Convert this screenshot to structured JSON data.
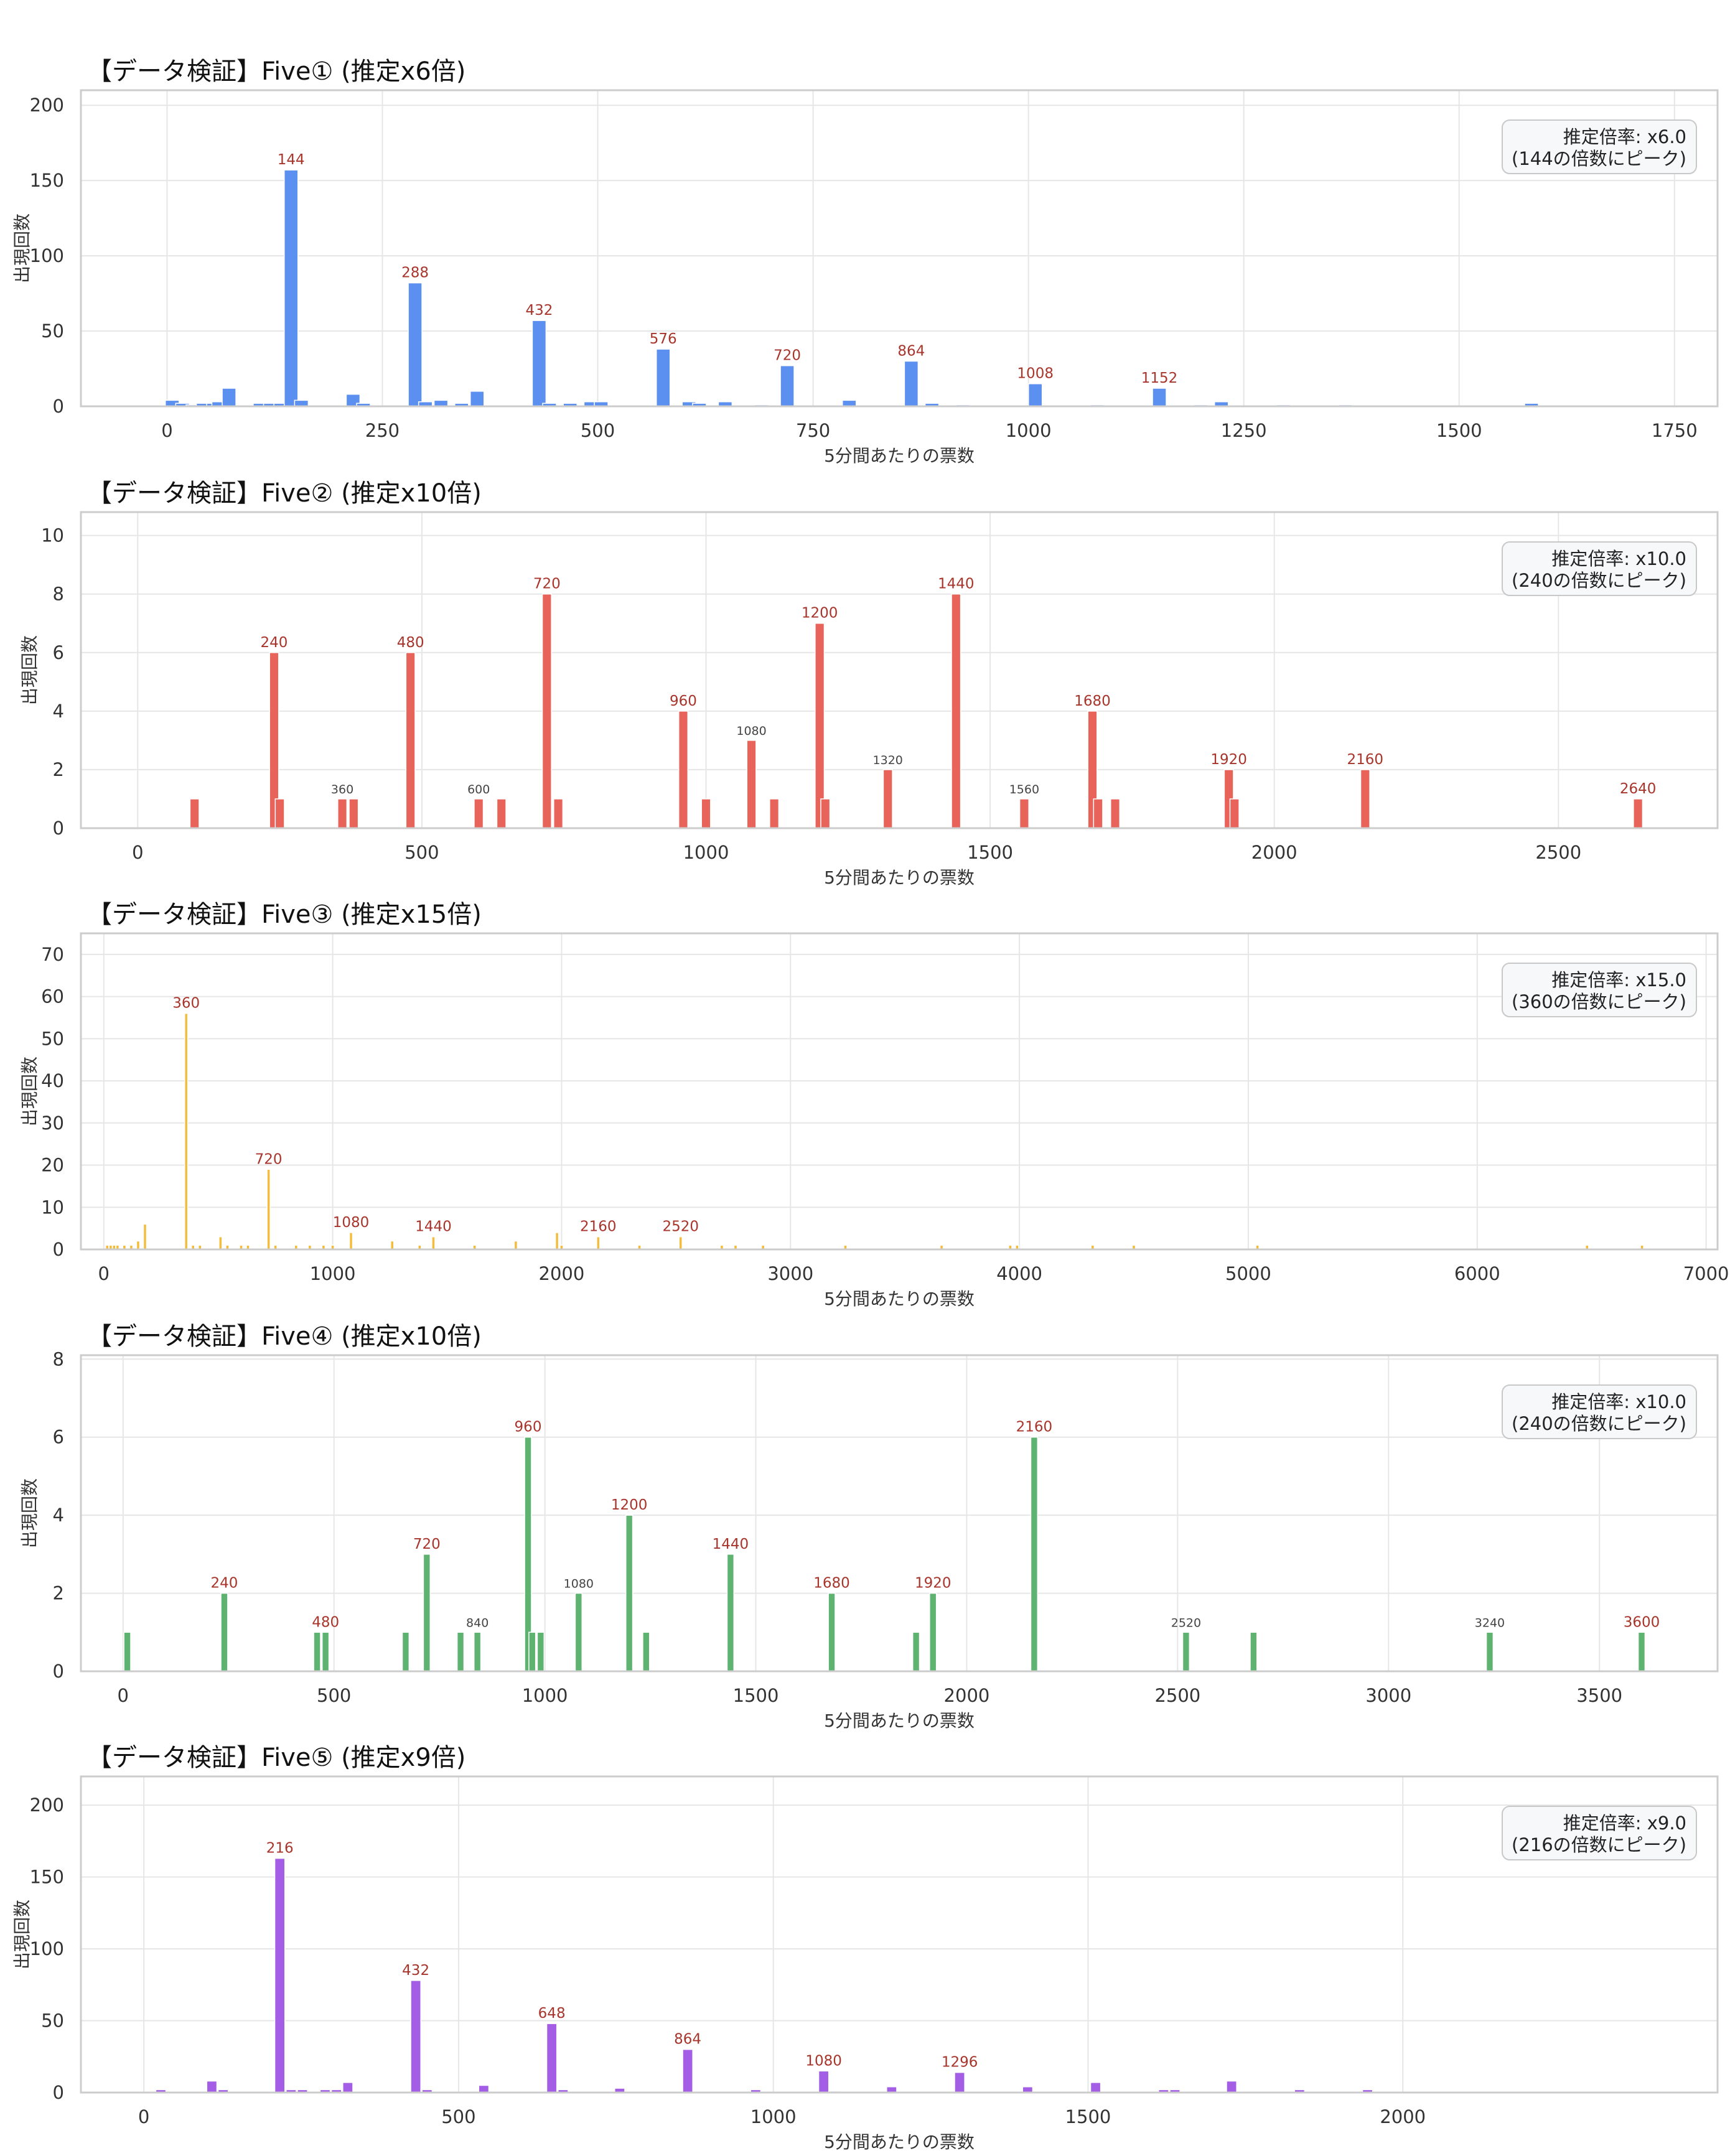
{
  "x_axis_label": "5分間あたりの票数",
  "y_axis_label": "出現回数",
  "chart_data": [
    {
      "type": "bar",
      "title": "【データ検証】Five① (推定x6倍)",
      "xlabel": "5分間あたりの票数",
      "ylabel": "出現回数",
      "color": "#5b8ff0",
      "xlim": [
        -100,
        1800
      ],
      "ylim": [
        0,
        210
      ],
      "xticks": [
        0,
        250,
        500,
        750,
        1000,
        1250,
        1500,
        1750
      ],
      "yticks": [
        0,
        50,
        100,
        150,
        200
      ],
      "grid": true,
      "legend_placement": "top-right",
      "annotation": [
        "推定倍率: x6.0",
        "(144の倍数にピーク)"
      ],
      "bars": [
        {
          "x": 6,
          "y": 4
        },
        {
          "x": 18,
          "y": 2
        },
        {
          "x": 30,
          "y": 1
        },
        {
          "x": 42,
          "y": 2
        },
        {
          "x": 54,
          "y": 2
        },
        {
          "x": 60,
          "y": 3
        },
        {
          "x": 72,
          "y": 12
        },
        {
          "x": 108,
          "y": 2
        },
        {
          "x": 120,
          "y": 2
        },
        {
          "x": 132,
          "y": 2
        },
        {
          "x": 144,
          "y": 157
        },
        {
          "x": 156,
          "y": 4
        },
        {
          "x": 216,
          "y": 8
        },
        {
          "x": 228,
          "y": 2
        },
        {
          "x": 288,
          "y": 82
        },
        {
          "x": 300,
          "y": 3
        },
        {
          "x": 318,
          "y": 4
        },
        {
          "x": 342,
          "y": 2
        },
        {
          "x": 360,
          "y": 10
        },
        {
          "x": 432,
          "y": 57
        },
        {
          "x": 444,
          "y": 2
        },
        {
          "x": 468,
          "y": 2
        },
        {
          "x": 492,
          "y": 3
        },
        {
          "x": 504,
          "y": 3
        },
        {
          "x": 576,
          "y": 38
        },
        {
          "x": 606,
          "y": 3
        },
        {
          "x": 618,
          "y": 2
        },
        {
          "x": 648,
          "y": 3
        },
        {
          "x": 690,
          "y": 1
        },
        {
          "x": 720,
          "y": 27
        },
        {
          "x": 792,
          "y": 4
        },
        {
          "x": 864,
          "y": 30
        },
        {
          "x": 888,
          "y": 2
        },
        {
          "x": 924,
          "y": 1
        },
        {
          "x": 1008,
          "y": 15
        },
        {
          "x": 1080,
          "y": 1
        },
        {
          "x": 1152,
          "y": 12
        },
        {
          "x": 1200,
          "y": 1
        },
        {
          "x": 1224,
          "y": 3
        },
        {
          "x": 1296,
          "y": 1
        },
        {
          "x": 1368,
          "y": 1
        },
        {
          "x": 1584,
          "y": 2
        }
      ],
      "bar_labels": [
        {
          "x": 144,
          "y": 157,
          "text": "144",
          "highlight": true
        },
        {
          "x": 288,
          "y": 82,
          "text": "288",
          "highlight": true
        },
        {
          "x": 432,
          "y": 57,
          "text": "432",
          "highlight": true
        },
        {
          "x": 576,
          "y": 38,
          "text": "576",
          "highlight": true
        },
        {
          "x": 720,
          "y": 27,
          "text": "720",
          "highlight": true
        },
        {
          "x": 864,
          "y": 30,
          "text": "864",
          "highlight": true
        },
        {
          "x": 1008,
          "y": 15,
          "text": "1008",
          "highlight": true
        },
        {
          "x": 1152,
          "y": 12,
          "text": "1152",
          "highlight": true
        }
      ]
    },
    {
      "type": "bar",
      "title": "【データ検証】Five② (推定x10倍)",
      "xlabel": "5分間あたりの票数",
      "ylabel": "出現回数",
      "color": "#e8635a",
      "xlim": [
        -100,
        2780
      ],
      "ylim": [
        0,
        10.8
      ],
      "xticks": [
        0,
        500,
        1000,
        1500,
        2000,
        2500
      ],
      "yticks": [
        0,
        2,
        4,
        6,
        8,
        10
      ],
      "grid": true,
      "legend_placement": "top-right",
      "annotation": [
        "推定倍率: x10.0",
        "(240の倍数にピーク)"
      ],
      "bars": [
        {
          "x": 100,
          "y": 1
        },
        {
          "x": 240,
          "y": 6
        },
        {
          "x": 250,
          "y": 1
        },
        {
          "x": 360,
          "y": 1
        },
        {
          "x": 380,
          "y": 1
        },
        {
          "x": 480,
          "y": 6
        },
        {
          "x": 600,
          "y": 1
        },
        {
          "x": 640,
          "y": 1
        },
        {
          "x": 720,
          "y": 8
        },
        {
          "x": 740,
          "y": 1
        },
        {
          "x": 960,
          "y": 4
        },
        {
          "x": 1000,
          "y": 1
        },
        {
          "x": 1080,
          "y": 3
        },
        {
          "x": 1120,
          "y": 1
        },
        {
          "x": 1200,
          "y": 7
        },
        {
          "x": 1210,
          "y": 1
        },
        {
          "x": 1320,
          "y": 2
        },
        {
          "x": 1440,
          "y": 8
        },
        {
          "x": 1560,
          "y": 1
        },
        {
          "x": 1680,
          "y": 4
        },
        {
          "x": 1690,
          "y": 1
        },
        {
          "x": 1720,
          "y": 1
        },
        {
          "x": 1920,
          "y": 2
        },
        {
          "x": 1930,
          "y": 1
        },
        {
          "x": 2160,
          "y": 2
        },
        {
          "x": 2640,
          "y": 1
        }
      ],
      "bar_labels": [
        {
          "x": 240,
          "y": 6,
          "text": "240",
          "highlight": true
        },
        {
          "x": 360,
          "y": 1,
          "text": "360",
          "highlight": false
        },
        {
          "x": 480,
          "y": 6,
          "text": "480",
          "highlight": true
        },
        {
          "x": 600,
          "y": 1,
          "text": "600",
          "highlight": false
        },
        {
          "x": 720,
          "y": 8,
          "text": "720",
          "highlight": true
        },
        {
          "x": 960,
          "y": 4,
          "text": "960",
          "highlight": true
        },
        {
          "x": 1080,
          "y": 3,
          "text": "1080",
          "highlight": false
        },
        {
          "x": 1200,
          "y": 7,
          "text": "1200",
          "highlight": true
        },
        {
          "x": 1320,
          "y": 2,
          "text": "1320",
          "highlight": false
        },
        {
          "x": 1440,
          "y": 8,
          "text": "1440",
          "highlight": true
        },
        {
          "x": 1560,
          "y": 1,
          "text": "1560",
          "highlight": false
        },
        {
          "x": 1680,
          "y": 4,
          "text": "1680",
          "highlight": true
        },
        {
          "x": 1920,
          "y": 2,
          "text": "1920",
          "highlight": true
        },
        {
          "x": 2160,
          "y": 2,
          "text": "2160",
          "highlight": true
        },
        {
          "x": 2640,
          "y": 1,
          "text": "2640",
          "highlight": true
        }
      ]
    },
    {
      "type": "bar",
      "title": "【データ検証】Five③ (推定x15倍)",
      "xlabel": "5分間あたりの票数",
      "ylabel": "出現回数",
      "color": "#f5bc3c",
      "xlim": [
        -100,
        7050
      ],
      "ylim": [
        0,
        75
      ],
      "xticks": [
        0,
        1000,
        2000,
        3000,
        4000,
        5000,
        6000,
        7000
      ],
      "yticks": [
        0,
        10,
        20,
        30,
        40,
        50,
        60,
        70
      ],
      "grid": true,
      "legend_placement": "top-right",
      "annotation": [
        "推定倍率: x15.0",
        "(360の倍数にピーク)"
      ],
      "bars": [
        {
          "x": 15,
          "y": 1
        },
        {
          "x": 30,
          "y": 1
        },
        {
          "x": 45,
          "y": 1
        },
        {
          "x": 60,
          "y": 1
        },
        {
          "x": 90,
          "y": 1
        },
        {
          "x": 120,
          "y": 1
        },
        {
          "x": 150,
          "y": 2
        },
        {
          "x": 180,
          "y": 6
        },
        {
          "x": 360,
          "y": 56
        },
        {
          "x": 390,
          "y": 1
        },
        {
          "x": 420,
          "y": 1
        },
        {
          "x": 510,
          "y": 3
        },
        {
          "x": 540,
          "y": 1
        },
        {
          "x": 600,
          "y": 1
        },
        {
          "x": 630,
          "y": 1
        },
        {
          "x": 720,
          "y": 19
        },
        {
          "x": 750,
          "y": 1
        },
        {
          "x": 840,
          "y": 1
        },
        {
          "x": 900,
          "y": 1
        },
        {
          "x": 960,
          "y": 1
        },
        {
          "x": 1000,
          "y": 1
        },
        {
          "x": 1080,
          "y": 4
        },
        {
          "x": 1260,
          "y": 2
        },
        {
          "x": 1380,
          "y": 1
        },
        {
          "x": 1440,
          "y": 3
        },
        {
          "x": 1620,
          "y": 1
        },
        {
          "x": 1800,
          "y": 2
        },
        {
          "x": 1980,
          "y": 4
        },
        {
          "x": 2000,
          "y": 1
        },
        {
          "x": 2160,
          "y": 3
        },
        {
          "x": 2340,
          "y": 1
        },
        {
          "x": 2520,
          "y": 3
        },
        {
          "x": 2700,
          "y": 1
        },
        {
          "x": 2760,
          "y": 1
        },
        {
          "x": 2880,
          "y": 1
        },
        {
          "x": 3240,
          "y": 1
        },
        {
          "x": 3660,
          "y": 1
        },
        {
          "x": 3960,
          "y": 1
        },
        {
          "x": 3990,
          "y": 1
        },
        {
          "x": 4320,
          "y": 1
        },
        {
          "x": 4500,
          "y": 1
        },
        {
          "x": 5040,
          "y": 1
        },
        {
          "x": 6480,
          "y": 1
        },
        {
          "x": 6720,
          "y": 1
        }
      ],
      "bar_labels": [
        {
          "x": 360,
          "y": 56,
          "text": "360",
          "highlight": true
        },
        {
          "x": 720,
          "y": 19,
          "text": "720",
          "highlight": true
        },
        {
          "x": 1080,
          "y": 4,
          "text": "1080",
          "highlight": true
        },
        {
          "x": 1440,
          "y": 3,
          "text": "1440",
          "highlight": true
        },
        {
          "x": 2160,
          "y": 3,
          "text": "2160",
          "highlight": true
        },
        {
          "x": 2520,
          "y": 3,
          "text": "2520",
          "highlight": true
        }
      ]
    },
    {
      "type": "bar",
      "title": "【データ検証】Five④ (推定x10倍)",
      "xlabel": "5分間あたりの票数",
      "ylabel": "出現回数",
      "color": "#5db36f",
      "xlim": [
        -100,
        3780
      ],
      "ylim": [
        0,
        8.1
      ],
      "xticks": [
        0,
        500,
        1000,
        1500,
        2000,
        2500,
        3000,
        3500
      ],
      "yticks": [
        0,
        2,
        4,
        6,
        8
      ],
      "grid": true,
      "legend_placement": "top-right",
      "annotation": [
        "推定倍率: x10.0",
        "(240の倍数にピーク)"
      ],
      "bars": [
        {
          "x": 10,
          "y": 1
        },
        {
          "x": 240,
          "y": 2
        },
        {
          "x": 460,
          "y": 1
        },
        {
          "x": 480,
          "y": 1
        },
        {
          "x": 670,
          "y": 1
        },
        {
          "x": 720,
          "y": 3
        },
        {
          "x": 800,
          "y": 1
        },
        {
          "x": 840,
          "y": 1
        },
        {
          "x": 960,
          "y": 6
        },
        {
          "x": 970,
          "y": 1
        },
        {
          "x": 990,
          "y": 1
        },
        {
          "x": 1080,
          "y": 2
        },
        {
          "x": 1200,
          "y": 4
        },
        {
          "x": 1240,
          "y": 1
        },
        {
          "x": 1440,
          "y": 3
        },
        {
          "x": 1680,
          "y": 2
        },
        {
          "x": 1880,
          "y": 1
        },
        {
          "x": 1920,
          "y": 2
        },
        {
          "x": 2160,
          "y": 6
        },
        {
          "x": 2520,
          "y": 1
        },
        {
          "x": 2680,
          "y": 1
        },
        {
          "x": 3240,
          "y": 1
        },
        {
          "x": 3600,
          "y": 1
        }
      ],
      "bar_labels": [
        {
          "x": 240,
          "y": 2,
          "text": "240",
          "highlight": true
        },
        {
          "x": 480,
          "y": 1,
          "text": "480",
          "highlight": true
        },
        {
          "x": 720,
          "y": 3,
          "text": "720",
          "highlight": true
        },
        {
          "x": 840,
          "y": 1,
          "text": "840",
          "highlight": false
        },
        {
          "x": 960,
          "y": 6,
          "text": "960",
          "highlight": true
        },
        {
          "x": 1080,
          "y": 2,
          "text": "1080",
          "highlight": false
        },
        {
          "x": 1200,
          "y": 4,
          "text": "1200",
          "highlight": true
        },
        {
          "x": 1440,
          "y": 3,
          "text": "1440",
          "highlight": true
        },
        {
          "x": 1680,
          "y": 2,
          "text": "1680",
          "highlight": true
        },
        {
          "x": 1920,
          "y": 2,
          "text": "1920",
          "highlight": true
        },
        {
          "x": 2160,
          "y": 6,
          "text": "2160",
          "highlight": true
        },
        {
          "x": 2520,
          "y": 1,
          "text": "2520",
          "highlight": false
        },
        {
          "x": 3240,
          "y": 1,
          "text": "3240",
          "highlight": false
        },
        {
          "x": 3600,
          "y": 1,
          "text": "3600",
          "highlight": true
        }
      ]
    },
    {
      "type": "bar",
      "title": "【データ検証】Five⑤ (推定x9倍)",
      "xlabel": "5分間あたりの票数",
      "ylabel": "出現回数",
      "color": "#a45ee5",
      "xlim": [
        -100,
        2500
      ],
      "ylim": [
        0,
        220
      ],
      "xticks": [
        0,
        500,
        1000,
        1500,
        2000
      ],
      "yticks": [
        0,
        50,
        100,
        150,
        200
      ],
      "grid": true,
      "legend_placement": "top-right",
      "annotation": [
        "推定倍率: x9.0",
        "(216の倍数にピーク)"
      ],
      "bars": [
        {
          "x": 27,
          "y": 2
        },
        {
          "x": 108,
          "y": 8
        },
        {
          "x": 126,
          "y": 2
        },
        {
          "x": 216,
          "y": 163
        },
        {
          "x": 234,
          "y": 2
        },
        {
          "x": 252,
          "y": 2
        },
        {
          "x": 288,
          "y": 2
        },
        {
          "x": 306,
          "y": 2
        },
        {
          "x": 324,
          "y": 7
        },
        {
          "x": 432,
          "y": 78
        },
        {
          "x": 450,
          "y": 2
        },
        {
          "x": 540,
          "y": 5
        },
        {
          "x": 648,
          "y": 48
        },
        {
          "x": 666,
          "y": 2
        },
        {
          "x": 756,
          "y": 3
        },
        {
          "x": 864,
          "y": 30
        },
        {
          "x": 972,
          "y": 2
        },
        {
          "x": 1080,
          "y": 15
        },
        {
          "x": 1098,
          "y": 1
        },
        {
          "x": 1188,
          "y": 4
        },
        {
          "x": 1296,
          "y": 14
        },
        {
          "x": 1404,
          "y": 4
        },
        {
          "x": 1512,
          "y": 7
        },
        {
          "x": 1620,
          "y": 2
        },
        {
          "x": 1638,
          "y": 2
        },
        {
          "x": 1728,
          "y": 8
        },
        {
          "x": 1836,
          "y": 2
        },
        {
          "x": 1944,
          "y": 2
        }
      ],
      "bar_labels": [
        {
          "x": 216,
          "y": 163,
          "text": "216",
          "highlight": true
        },
        {
          "x": 432,
          "y": 78,
          "text": "432",
          "highlight": true
        },
        {
          "x": 648,
          "y": 48,
          "text": "648",
          "highlight": true
        },
        {
          "x": 864,
          "y": 30,
          "text": "864",
          "highlight": true
        },
        {
          "x": 1080,
          "y": 15,
          "text": "1080",
          "highlight": true
        },
        {
          "x": 1296,
          "y": 14,
          "text": "1296",
          "highlight": true
        }
      ]
    }
  ]
}
